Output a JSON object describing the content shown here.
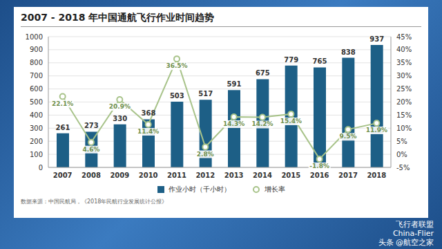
{
  "chart_data": {
    "type": "bar",
    "title": "2007 - 2018 年中国通航飞行作业时间趋势",
    "categories": [
      "2007",
      "2008",
      "2009",
      "2010",
      "2011",
      "2012",
      "2013",
      "2014",
      "2015",
      "2016",
      "2017",
      "2018"
    ],
    "series": [
      {
        "name": "作业小时（千小时）",
        "type": "bar",
        "color": "#1d5f86",
        "data_labels": true,
        "values": [
          261,
          273,
          330,
          368,
          503,
          517,
          591,
          675,
          779,
          765,
          838,
          937
        ]
      },
      {
        "name": "增长率",
        "type": "line",
        "axis": "y2",
        "color": "#a8c38a",
        "marker": "circle",
        "data_labels": true,
        "values": [
          22.1,
          4.6,
          20.9,
          11.4,
          36.5,
          2.8,
          14.3,
          14.2,
          15.4,
          -1.8,
          9.5,
          11.9
        ],
        "value_labels": [
          "22.1%",
          "4.6%",
          "20.9%",
          "11.4%",
          "36.5%",
          "2.8%",
          "14.3%",
          "14.2%",
          "15.4%",
          "-1.8%",
          "9.5%",
          "11.9%"
        ]
      }
    ],
    "ylim": [
      0,
      1000
    ],
    "yticks": [
      0,
      100,
      200,
      300,
      400,
      500,
      600,
      700,
      800,
      900,
      1000
    ],
    "y2lim": [
      -5,
      45
    ],
    "y2ticks": [
      {
        "value": -5,
        "label": "-5%"
      },
      {
        "value": 0,
        "label": "0%"
      },
      {
        "value": 5,
        "label": "5%"
      },
      {
        "value": 10,
        "label": "10%"
      },
      {
        "value": 15,
        "label": "15%"
      },
      {
        "value": 20,
        "label": "20%"
      },
      {
        "value": 25,
        "label": "25%"
      },
      {
        "value": 30,
        "label": "30%"
      },
      {
        "value": 35,
        "label": "35%"
      },
      {
        "value": 40,
        "label": "40%"
      },
      {
        "value": 45,
        "label": "45%"
      }
    ],
    "grid": true,
    "legend": "bottom",
    "source": "数据来源：中国民航局，《2018年民航行业发展统计公报》",
    "annotations": [
      "飞行者联盟",
      "China-Flier",
      "头条 @航空之家"
    ]
  }
}
